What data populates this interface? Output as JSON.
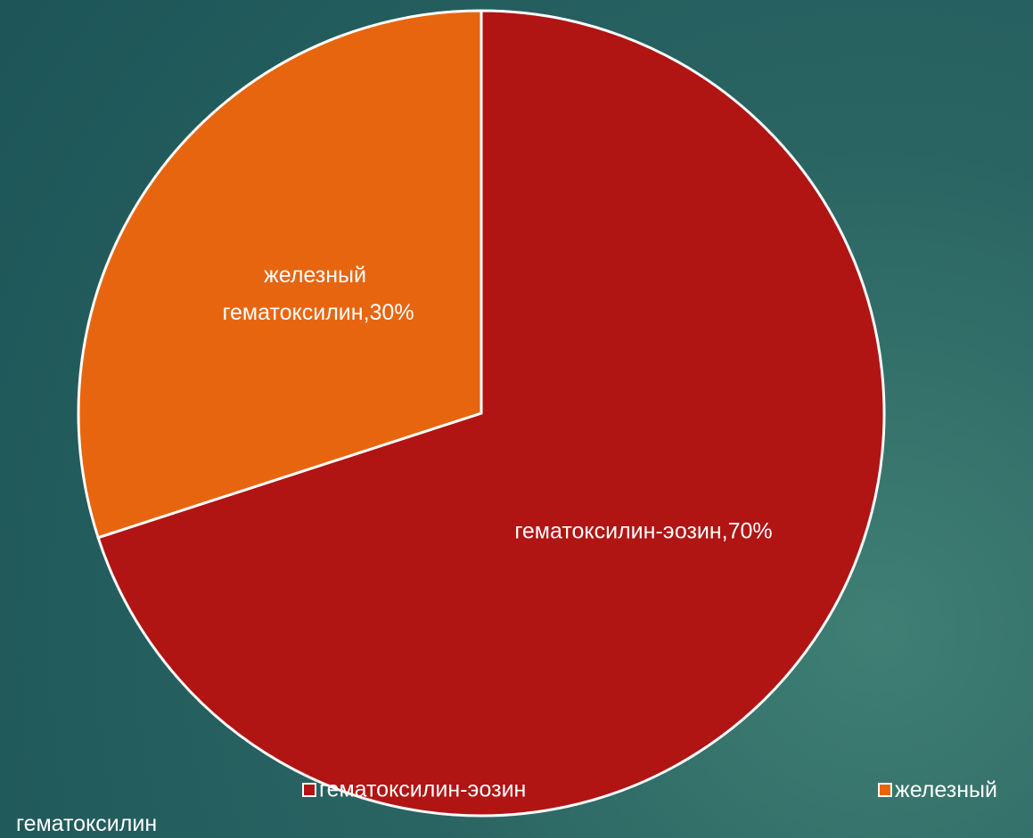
{
  "chart_data": {
    "type": "pie",
    "categories": [
      "гематоксилин-эозин",
      "железный гематоксилин"
    ],
    "values": [
      70,
      30
    ],
    "value_labels": [
      "гематоксилин-эозин,70%",
      "железный гематоксилин,30%"
    ],
    "colors": [
      "#b01513",
      "#e8650f"
    ],
    "legend": "bottom"
  }
}
